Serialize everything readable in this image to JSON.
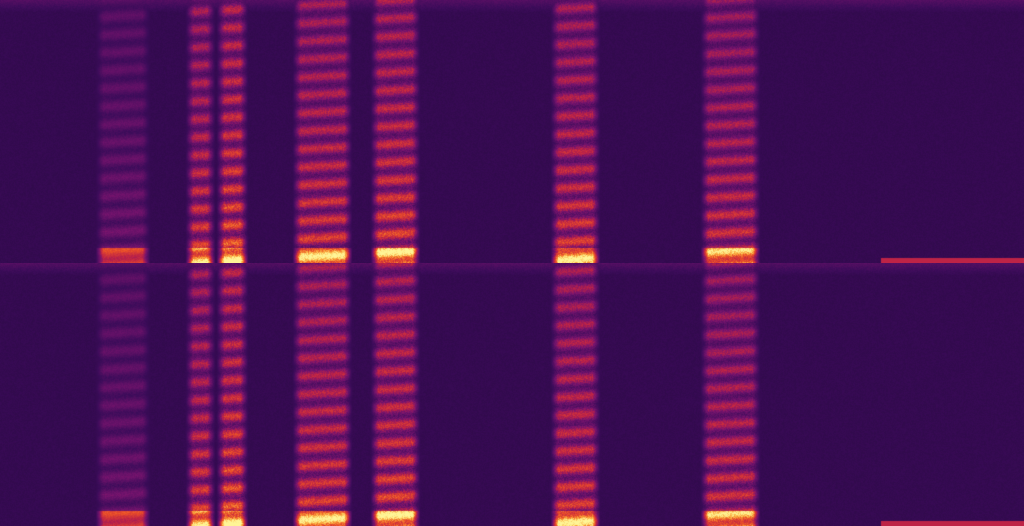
{
  "chart_data": {
    "type": "heatmap",
    "kind": "spectrogram",
    "channels": 2,
    "colormap": "magma",
    "colors": {
      "low": "#2a0a45",
      "mid": "#b0203a",
      "high": "#fff07a"
    },
    "axes_visible": false,
    "grid": false,
    "legend": "none"
  }
}
